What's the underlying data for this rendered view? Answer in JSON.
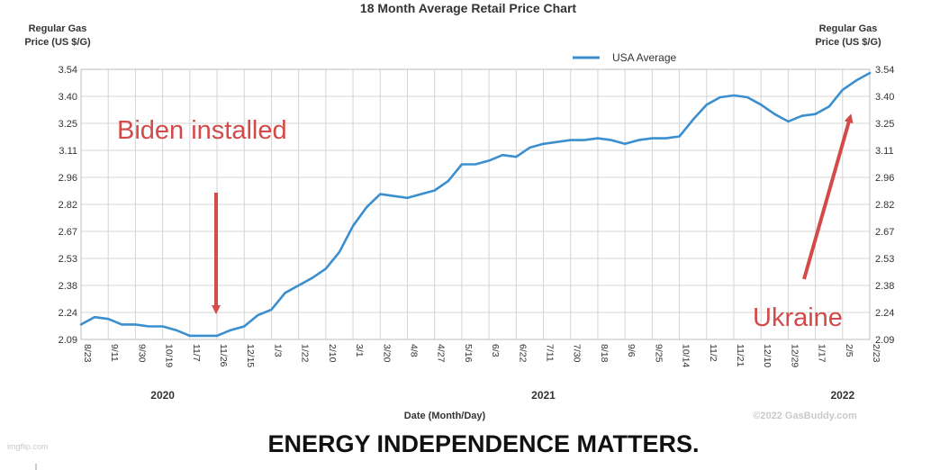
{
  "chart_data": {
    "type": "line",
    "title": "18 Month Average Retail Price Chart",
    "ylabel_left": [
      "Regular Gas",
      "Price (US $/G)"
    ],
    "ylabel_right": [
      "Regular Gas",
      "Price (US $/G)"
    ],
    "xlabel": "Date (Month/Day)",
    "y_ticks": [
      "3.54",
      "3.40",
      "3.25",
      "3.11",
      "2.96",
      "2.82",
      "2.67",
      "2.53",
      "2.38",
      "2.24",
      "2.09"
    ],
    "ylim": [
      2.09,
      3.54
    ],
    "x_ticks": [
      "8/23",
      "9/11",
      "9/30",
      "10/19",
      "11/7",
      "11/26",
      "12/15",
      "1/3",
      "1/22",
      "2/10",
      "3/1",
      "3/20",
      "4/8",
      "4/27",
      "5/16",
      "6/3",
      "6/22",
      "7/11",
      "7/30",
      "8/18",
      "9/6",
      "9/25",
      "10/14",
      "11/2",
      "11/21",
      "12/10",
      "12/29",
      "1/17",
      "2/5",
      "2/23"
    ],
    "years": [
      {
        "label": "2020",
        "at_tick": 3
      },
      {
        "label": "2021",
        "at_tick": 17
      },
      {
        "label": "2022",
        "at_tick": 28
      }
    ],
    "grid": true,
    "legend": "top-center",
    "series": [
      {
        "name": "USA Average",
        "color": "#3b8fcf",
        "x": [
          0,
          0.5,
          1,
          1.5,
          2,
          2.5,
          3,
          3.5,
          4,
          4.5,
          5,
          5.5,
          6,
          6.5,
          7,
          7.5,
          8,
          8.5,
          9,
          9.5,
          10,
          10.5,
          11,
          11.5,
          12,
          12.5,
          13,
          13.5,
          14,
          14.5,
          15,
          15.5,
          16,
          16.5,
          17,
          17.5,
          18,
          18.5,
          19,
          19.5,
          20,
          20.5,
          21,
          21.5,
          22,
          22.5,
          23,
          23.5,
          24,
          24.5,
          25,
          25.5,
          26,
          26.5,
          27,
          27.5,
          28,
          28.5,
          29
        ],
        "values": [
          2.17,
          2.21,
          2.2,
          2.17,
          2.17,
          2.16,
          2.16,
          2.14,
          2.11,
          2.11,
          2.11,
          2.14,
          2.16,
          2.22,
          2.25,
          2.34,
          2.38,
          2.42,
          2.47,
          2.56,
          2.7,
          2.8,
          2.87,
          2.86,
          2.85,
          2.87,
          2.89,
          2.94,
          3.03,
          3.03,
          3.05,
          3.08,
          3.07,
          3.12,
          3.14,
          3.15,
          3.16,
          3.16,
          3.17,
          3.16,
          3.14,
          3.16,
          3.17,
          3.17,
          3.18,
          3.27,
          3.35,
          3.39,
          3.4,
          3.39,
          3.35,
          3.3,
          3.26,
          3.29,
          3.3,
          3.34,
          3.43,
          3.48,
          3.52
        ]
      }
    ],
    "annotations": [
      {
        "text": "Biden installed",
        "color": "#d34a4a"
      },
      {
        "text": "Ukraine",
        "color": "#d34a4a"
      }
    ],
    "credit": "©2022 GasBuddy.com"
  },
  "caption": "ENERGY INDEPENDENCE MATTERS.",
  "watermark": "imgflip.com"
}
